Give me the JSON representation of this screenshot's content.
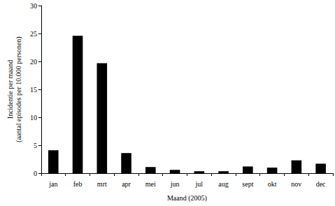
{
  "chart_data": {
    "type": "bar",
    "x_label": "Maand (2005)",
    "y_label": "Incidentie per maand\n(aantal episodes per 10.000 personen)",
    "categories": [
      "jan",
      "feb",
      "mrt",
      "apr",
      "mei",
      "jun",
      "jul",
      "aug",
      "sept",
      "okt",
      "nov",
      "dec"
    ],
    "values": [
      4.1,
      24.6,
      19.7,
      3.6,
      1.1,
      0.6,
      0.35,
      0.35,
      1.2,
      1.0,
      2.3,
      1.7
    ],
    "color": "#000000",
    "ylim": [
      0,
      30
    ],
    "yticks": [
      0,
      5,
      10,
      15,
      20,
      25,
      30
    ],
    "grid": false
  }
}
